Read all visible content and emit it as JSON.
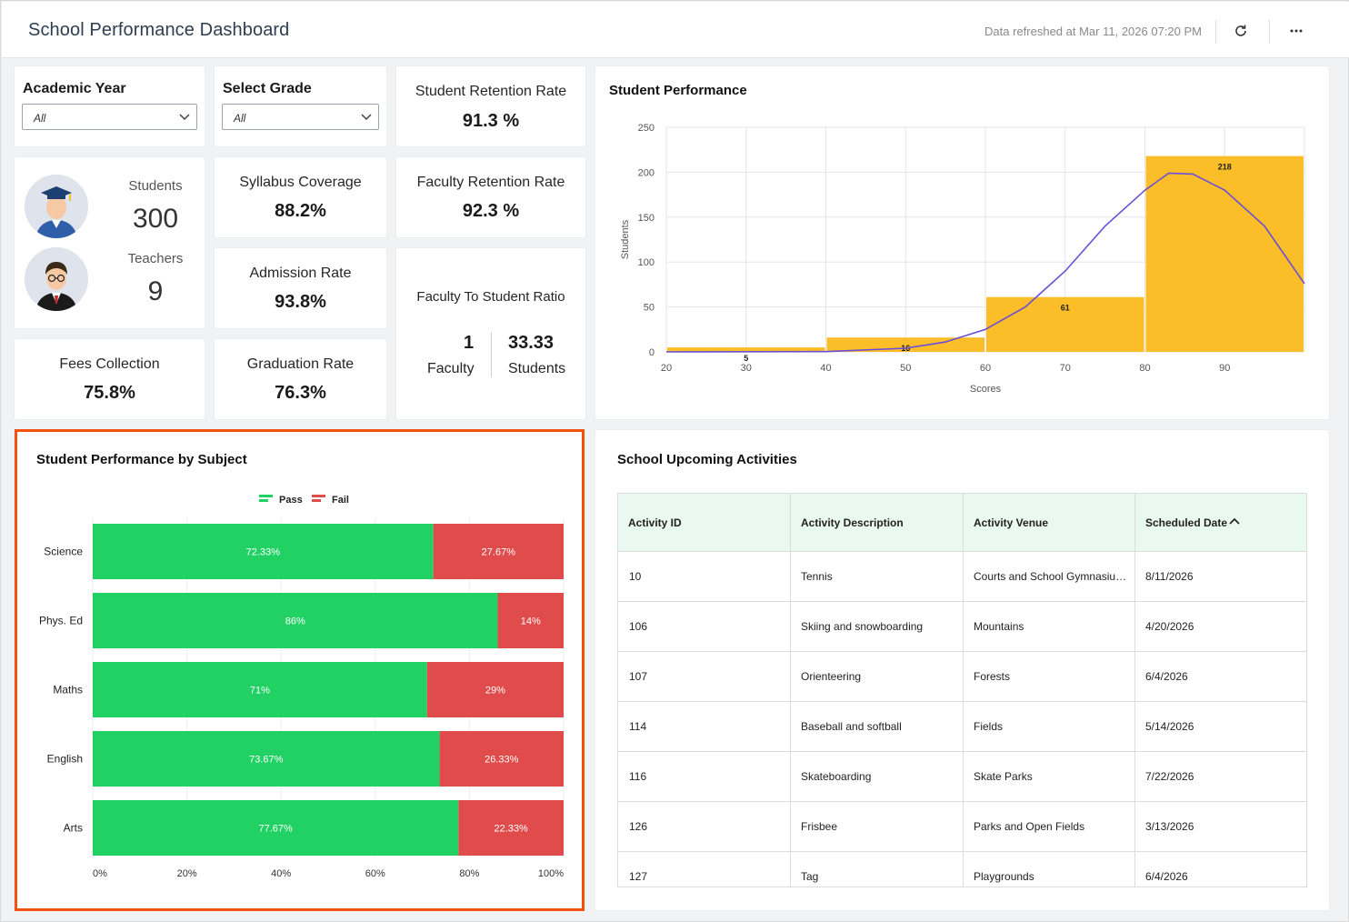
{
  "header": {
    "title": "School Performance Dashboard",
    "refreshed": "Data refreshed at Mar 11, 2026 07:20 PM",
    "refresh_icon": "refresh-icon",
    "more_icon": "more-horizontal-icon"
  },
  "filters": {
    "academic_year": {
      "label": "Academic Year",
      "value": "All"
    },
    "grade": {
      "label": "Select Grade",
      "value": "All"
    }
  },
  "people": {
    "students_label": "Students",
    "students_value": "300",
    "teachers_label": "Teachers",
    "teachers_value": "9"
  },
  "kpis": {
    "student_retention": {
      "label": "Student Retention Rate",
      "value": "91.3 %"
    },
    "syllabus_coverage": {
      "label": "Syllabus Coverage",
      "value": "88.2%"
    },
    "faculty_retention": {
      "label": "Faculty Retention Rate",
      "value": "92.3 %"
    },
    "admission_rate": {
      "label": "Admission Rate",
      "value": "93.8%"
    },
    "fees_collection": {
      "label": "Fees Collection",
      "value": "75.8%"
    },
    "graduation_rate": {
      "label": "Graduation Rate",
      "value": "76.3%"
    }
  },
  "ratio": {
    "label": "Faculty To Student Ratio",
    "faculty_value": "1",
    "faculty_label": "Faculty",
    "students_value": "33.33",
    "students_label": "Students"
  },
  "colors": {
    "pass": "#22d164",
    "fail": "#e04b4b",
    "histogram": "#fbbd28",
    "curve": "#6a4fd8",
    "highlight": "#f2520e",
    "table_header": "#eaf8f2"
  },
  "chart_data": [
    {
      "type": "bar",
      "title": "Student Performance",
      "xlabel": "Scores",
      "ylabel": "Students",
      "ylim": [
        0,
        250
      ],
      "xlim": [
        20,
        100
      ],
      "yticks": [
        0,
        50,
        100,
        150,
        200,
        250
      ],
      "xticks": [
        20,
        30,
        40,
        50,
        60,
        70,
        80,
        90
      ],
      "bins": [
        {
          "start": 20,
          "end": 40,
          "value": 5,
          "label": "5"
        },
        {
          "start": 40,
          "end": 60,
          "value": 16,
          "label": "16"
        },
        {
          "start": 60,
          "end": 80,
          "value": 61,
          "label": "61"
        },
        {
          "start": 80,
          "end": 100,
          "value": 218,
          "label": "218"
        }
      ],
      "curve": [
        [
          20,
          0
        ],
        [
          40,
          0.3
        ],
        [
          50,
          4
        ],
        [
          55,
          11
        ],
        [
          60,
          25
        ],
        [
          65,
          50
        ],
        [
          70,
          90
        ],
        [
          75,
          140
        ],
        [
          80,
          180
        ],
        [
          83,
          199
        ],
        [
          86,
          198
        ],
        [
          90,
          180
        ],
        [
          95,
          140
        ],
        [
          100,
          76
        ]
      ],
      "grid": true
    },
    {
      "type": "bar",
      "orientation": "horizontal-stacked-100",
      "title": "Student Performance by Subject",
      "legend": [
        "Pass",
        "Fail"
      ],
      "legend_position": "top-center",
      "categories": [
        "Science",
        "Phys. Ed",
        "Maths",
        "English",
        "Arts"
      ],
      "series": [
        {
          "name": "Pass",
          "values": [
            72.33,
            86,
            71,
            73.67,
            77.67
          ],
          "labels": [
            "72.33%",
            "86%",
            "71%",
            "73.67%",
            "77.67%"
          ]
        },
        {
          "name": "Fail",
          "values": [
            27.67,
            14,
            29,
            26.33,
            22.33
          ],
          "labels": [
            "27.67%",
            "14%",
            "29%",
            "26.33%",
            "22.33%"
          ]
        }
      ],
      "xticks": [
        "0%",
        "20%",
        "40%",
        "60%",
        "80%",
        "100%"
      ]
    }
  ],
  "activities": {
    "title": "School Upcoming Activities",
    "columns": [
      "Activity ID",
      "Activity Description",
      "Activity Venue",
      "Scheduled Date"
    ],
    "sort_icon": "chevron-up-icon",
    "rows": [
      [
        "10",
        "Tennis",
        "Courts and School Gymnasiu…",
        "8/11/2026"
      ],
      [
        "106",
        "Skiing and snowboarding",
        "Mountains",
        "4/20/2026"
      ],
      [
        "107",
        "Orienteering",
        "Forests",
        "6/4/2026"
      ],
      [
        "114",
        "Baseball and softball",
        "Fields",
        "5/14/2026"
      ],
      [
        "116",
        "Skateboarding",
        "Skate Parks",
        "7/22/2026"
      ],
      [
        "126",
        "Frisbee",
        "Parks and Open Fields",
        "3/13/2026"
      ],
      [
        "127",
        "Tag",
        "Playgrounds",
        "6/4/2026"
      ]
    ]
  }
}
